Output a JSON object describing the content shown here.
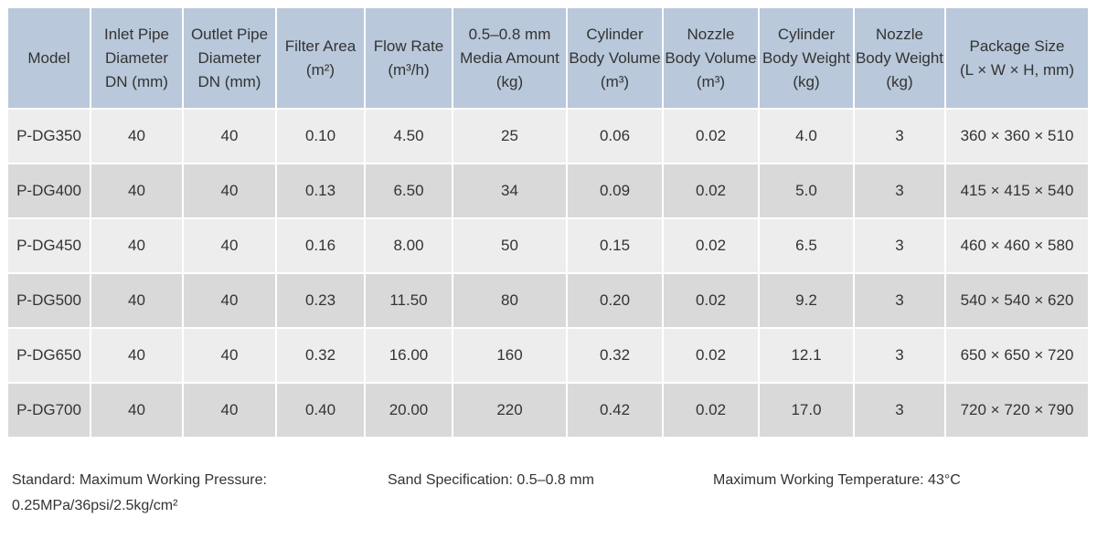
{
  "table": {
    "header": [
      [
        "Model"
      ],
      [
        "Inlet Pipe",
        "Diameter",
        "DN (mm)"
      ],
      [
        "Outlet Pipe",
        "Diameter",
        "DN (mm)"
      ],
      [
        "Filter Area",
        "(m²)"
      ],
      [
        "Flow Rate",
        "(m³/h)"
      ],
      [
        "0.5–0.8 mm",
        "Media Amount",
        "(kg)"
      ],
      [
        "Cylinder",
        "Body Volume",
        "(m³)"
      ],
      [
        "Nozzle",
        "Body Volume",
        "(m³)"
      ],
      [
        "Cylinder",
        "Body Weight",
        "(kg)"
      ],
      [
        "Nozzle",
        "Body Weight",
        "(kg)"
      ],
      [
        "Package Size",
        "(L × W × H, mm)"
      ]
    ],
    "rows": [
      [
        "P-DG350",
        "40",
        "40",
        "0.10",
        "4.50",
        "25",
        "0.06",
        "0.02",
        "4.0",
        "3",
        "360 × 360 × 510"
      ],
      [
        "P-DG400",
        "40",
        "40",
        "0.13",
        "6.50",
        "34",
        "0.09",
        "0.02",
        "5.0",
        "3",
        "415 × 415 × 540"
      ],
      [
        "P-DG450",
        "40",
        "40",
        "0.16",
        "8.00",
        "50",
        "0.15",
        "0.02",
        "6.5",
        "3",
        "460 × 460 × 580"
      ],
      [
        "P-DG500",
        "40",
        "40",
        "0.23",
        "11.50",
        "80",
        "0.20",
        "0.02",
        "9.2",
        "3",
        "540 × 540 × 620"
      ],
      [
        "P-DG650",
        "40",
        "40",
        "0.32",
        "16.00",
        "160",
        "0.32",
        "0.02",
        "12.1",
        "3",
        "650 × 650 × 720"
      ],
      [
        "P-DG700",
        "40",
        "40",
        "0.40",
        "20.00",
        "220",
        "0.42",
        "0.02",
        "17.0",
        "3",
        "720 × 720 × 790"
      ]
    ]
  },
  "notes": [
    [
      "Standard: Maximum Working Pressure:",
      "0.25MPa/36psi/2.5kg/cm²"
    ],
    [
      "Sand Specification:  0.5–0.8 mm"
    ],
    [
      "Maximum Working Temperature:  43°C"
    ]
  ]
}
